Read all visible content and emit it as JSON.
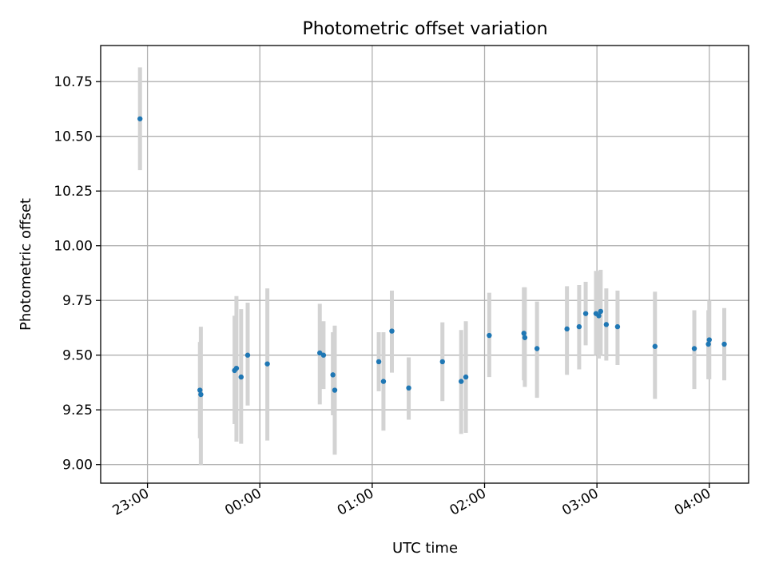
{
  "chart_data": {
    "type": "scatter",
    "title": "Photometric offset variation",
    "xlabel": "UTC time",
    "ylabel": "Photometric offset",
    "x_format": "UTC date-time (ISO, UTC)",
    "xlim": [
      "2024-01-01T22:35:00Z",
      "2024-01-02T04:21:00Z"
    ],
    "ylim": [
      8.915,
      10.915
    ],
    "x_ticks": [
      {
        "value": "2024-01-01T23:00:00Z",
        "label": "23:00"
      },
      {
        "value": "2024-01-02T00:00:00Z",
        "label": "00:00"
      },
      {
        "value": "2024-01-02T01:00:00Z",
        "label": "01:00"
      },
      {
        "value": "2024-01-02T02:00:00Z",
        "label": "02:00"
      },
      {
        "value": "2024-01-02T03:00:00Z",
        "label": "03:00"
      },
      {
        "value": "2024-01-02T04:00:00Z",
        "label": "04:00"
      }
    ],
    "y_ticks": [
      {
        "value": 9.0,
        "label": "9.00"
      },
      {
        "value": 9.25,
        "label": "9.25"
      },
      {
        "value": 9.5,
        "label": "9.50"
      },
      {
        "value": 9.75,
        "label": "9.75"
      },
      {
        "value": 10.0,
        "label": "10.00"
      },
      {
        "value": 10.25,
        "label": "10.25"
      },
      {
        "value": 10.5,
        "label": "10.50"
      },
      {
        "value": 10.75,
        "label": "10.75"
      }
    ],
    "grid": true,
    "legend": "none",
    "point_color": "#1f77b4",
    "errorbar_color": "#d3d3d3",
    "points": [
      {
        "x": "2024-01-01T22:56:00Z",
        "y": 10.58,
        "yerr_low": 10.345,
        "yerr_high": 10.815
      },
      {
        "x": "2024-01-01T23:28:00Z",
        "y": 9.34,
        "yerr_low": 9.12,
        "yerr_high": 9.56
      },
      {
        "x": "2024-01-01T23:28:30Z",
        "y": 9.32,
        "yerr_low": 9.0,
        "yerr_high": 9.63
      },
      {
        "x": "2024-01-01T23:46:30Z",
        "y": 9.43,
        "yerr_low": 9.185,
        "yerr_high": 9.68
      },
      {
        "x": "2024-01-01T23:47:30Z",
        "y": 9.44,
        "yerr_low": 9.105,
        "yerr_high": 9.77
      },
      {
        "x": "2024-01-01T23:50:00Z",
        "y": 9.4,
        "yerr_low": 9.095,
        "yerr_high": 9.71
      },
      {
        "x": "2024-01-01T23:53:30Z",
        "y": 9.5,
        "yerr_low": 9.27,
        "yerr_high": 9.74
      },
      {
        "x": "2024-01-02T00:04:00Z",
        "y": 9.46,
        "yerr_low": 9.11,
        "yerr_high": 9.805
      },
      {
        "x": "2024-01-02T00:32:00Z",
        "y": 9.51,
        "yerr_low": 9.275,
        "yerr_high": 9.735
      },
      {
        "x": "2024-01-02T00:34:00Z",
        "y": 9.5,
        "yerr_low": 9.345,
        "yerr_high": 9.655
      },
      {
        "x": "2024-01-02T00:39:00Z",
        "y": 9.41,
        "yerr_low": 9.225,
        "yerr_high": 9.605
      },
      {
        "x": "2024-01-02T00:40:00Z",
        "y": 9.34,
        "yerr_low": 9.045,
        "yerr_high": 9.635
      },
      {
        "x": "2024-01-02T01:03:30Z",
        "y": 9.47,
        "yerr_low": 9.335,
        "yerr_high": 9.605
      },
      {
        "x": "2024-01-02T01:06:00Z",
        "y": 9.38,
        "yerr_low": 9.155,
        "yerr_high": 9.605
      },
      {
        "x": "2024-01-02T01:10:30Z",
        "y": 9.61,
        "yerr_low": 9.42,
        "yerr_high": 9.795
      },
      {
        "x": "2024-01-02T01:19:30Z",
        "y": 9.35,
        "yerr_low": 9.205,
        "yerr_high": 9.49
      },
      {
        "x": "2024-01-02T01:37:30Z",
        "y": 9.47,
        "yerr_low": 9.29,
        "yerr_high": 9.65
      },
      {
        "x": "2024-01-02T01:47:30Z",
        "y": 9.38,
        "yerr_low": 9.14,
        "yerr_high": 9.615
      },
      {
        "x": "2024-01-02T01:50:00Z",
        "y": 9.4,
        "yerr_low": 9.145,
        "yerr_high": 9.655
      },
      {
        "x": "2024-01-02T02:02:30Z",
        "y": 9.59,
        "yerr_low": 9.4,
        "yerr_high": 9.785
      },
      {
        "x": "2024-01-02T02:21:00Z",
        "y": 9.6,
        "yerr_low": 9.385,
        "yerr_high": 9.81
      },
      {
        "x": "2024-01-02T02:21:30Z",
        "y": 9.58,
        "yerr_low": 9.355,
        "yerr_high": 9.81
      },
      {
        "x": "2024-01-02T02:28:00Z",
        "y": 9.53,
        "yerr_low": 9.305,
        "yerr_high": 9.745
      },
      {
        "x": "2024-01-02T02:44:00Z",
        "y": 9.62,
        "yerr_low": 9.41,
        "yerr_high": 9.815
      },
      {
        "x": "2024-01-02T02:50:30Z",
        "y": 9.63,
        "yerr_low": 9.435,
        "yerr_high": 9.82
      },
      {
        "x": "2024-01-02T02:54:00Z",
        "y": 9.69,
        "yerr_low": 9.545,
        "yerr_high": 9.835
      },
      {
        "x": "2024-01-02T02:59:30Z",
        "y": 9.69,
        "yerr_low": 9.5,
        "yerr_high": 9.885
      },
      {
        "x": "2024-01-02T03:01:00Z",
        "y": 9.68,
        "yerr_low": 9.485,
        "yerr_high": 9.885
      },
      {
        "x": "2024-01-02T03:02:00Z",
        "y": 9.7,
        "yerr_low": 9.5,
        "yerr_high": 9.89
      },
      {
        "x": "2024-01-02T03:05:00Z",
        "y": 9.64,
        "yerr_low": 9.475,
        "yerr_high": 9.805
      },
      {
        "x": "2024-01-02T03:11:00Z",
        "y": 9.63,
        "yerr_low": 9.455,
        "yerr_high": 9.795
      },
      {
        "x": "2024-01-02T03:31:00Z",
        "y": 9.54,
        "yerr_low": 9.3,
        "yerr_high": 9.79
      },
      {
        "x": "2024-01-02T03:52:00Z",
        "y": 9.53,
        "yerr_low": 9.345,
        "yerr_high": 9.705
      },
      {
        "x": "2024-01-02T03:59:30Z",
        "y": 9.55,
        "yerr_low": 9.39,
        "yerr_high": 9.705
      },
      {
        "x": "2024-01-02T04:00:00Z",
        "y": 9.57,
        "yerr_low": 9.39,
        "yerr_high": 9.75
      },
      {
        "x": "2024-01-02T04:08:00Z",
        "y": 9.55,
        "yerr_low": 9.385,
        "yerr_high": 9.715
      }
    ]
  }
}
